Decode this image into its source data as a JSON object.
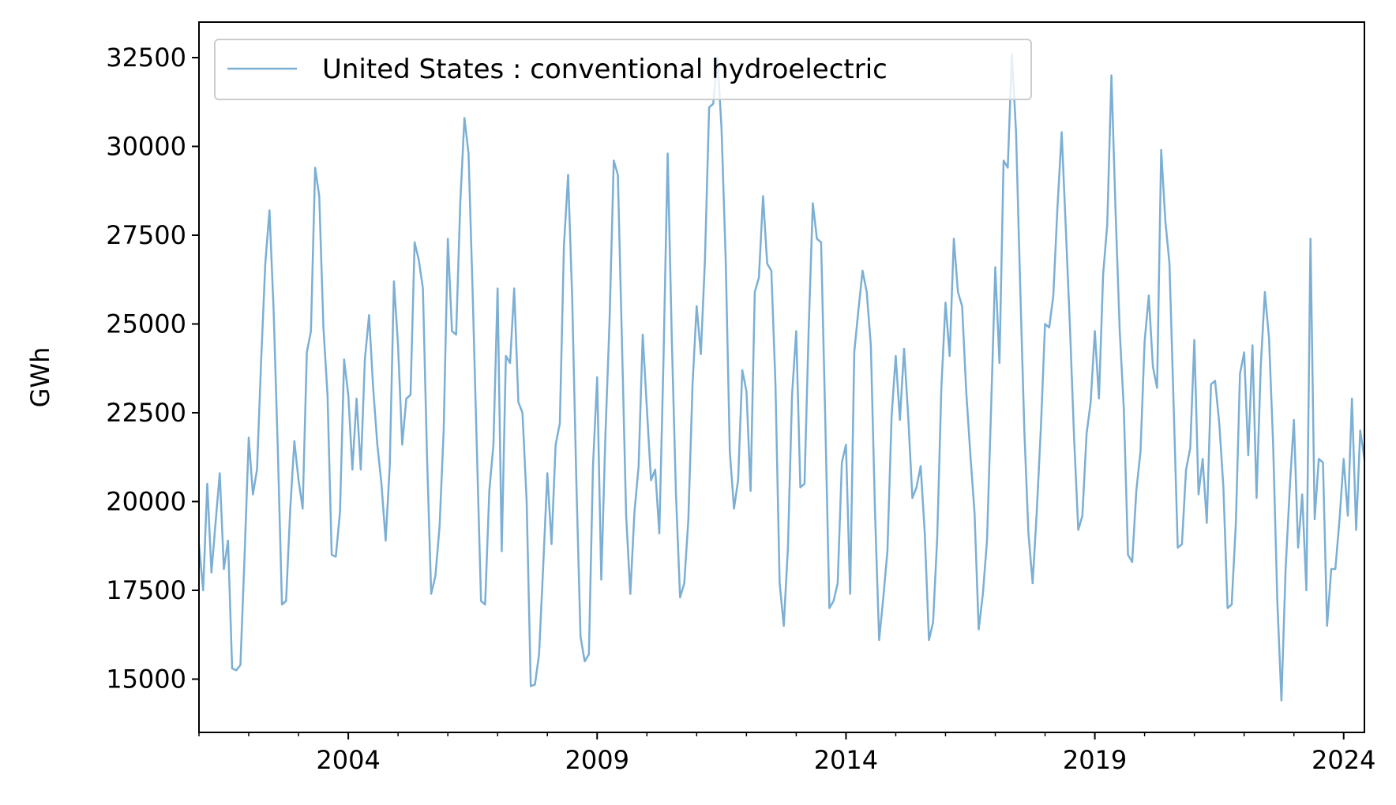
{
  "chart_data": {
    "type": "line",
    "title": "",
    "xlabel": "",
    "ylabel": "GWh",
    "xlim": [
      "2001-01",
      "2024-06"
    ],
    "ylim": [
      13500,
      33500
    ],
    "yticks": [
      15000,
      17500,
      20000,
      22500,
      25000,
      27500,
      30000,
      32500
    ],
    "xticks": [
      {
        "label": "2004",
        "date": "2004-01"
      },
      {
        "label": "2009",
        "date": "2009-01"
      },
      {
        "label": "2014",
        "date": "2014-01"
      },
      {
        "label": "2019",
        "date": "2019-01"
      },
      {
        "label": "2024",
        "date": "2024-01"
      }
    ],
    "grid": false,
    "legend": {
      "placement": "top-left"
    },
    "series": [
      {
        "name": "United States : conventional hydroelectric",
        "color": "#7bafd4",
        "start": "2001-01",
        "frequency": "monthly",
        "values": [
          18800,
          17500,
          20500,
          18000,
          19400,
          20800,
          18100,
          18900,
          15300,
          15250,
          15400,
          18500,
          21800,
          20200,
          20900,
          24000,
          26700,
          28200,
          25400,
          21500,
          17100,
          17200,
          19800,
          21700,
          20600,
          19800,
          24200,
          24800,
          29400,
          28600,
          24900,
          23000,
          18500,
          18450,
          19700,
          24000,
          23000,
          20900,
          22900,
          20900,
          24000,
          25250,
          23200,
          21600,
          20500,
          18900,
          21000,
          26200,
          24400,
          21600,
          22900,
          23000,
          27300,
          26800,
          26000,
          21200,
          17400,
          17900,
          19300,
          22000,
          27400,
          24800,
          24700,
          28400,
          30800,
          29800,
          25800,
          21500,
          17200,
          17100,
          20300,
          21600,
          26000,
          18600,
          24100,
          23900,
          26000,
          22800,
          22500,
          20000,
          14800,
          14850,
          15700,
          18200,
          20800,
          18800,
          21600,
          22200,
          27200,
          29200,
          25700,
          20500,
          16200,
          15500,
          15700,
          21000,
          23500,
          17800,
          21900,
          25100,
          29600,
          29200,
          24400,
          19600,
          17400,
          19700,
          21000,
          24700,
          22600,
          20600,
          20900,
          19100,
          24000,
          29800,
          24600,
          20200,
          17300,
          17700,
          19500,
          23300,
          25500,
          24150,
          26800,
          31100,
          31200,
          32500,
          30500,
          26800,
          21400,
          19800,
          20600,
          23700,
          23100,
          20300,
          25900,
          26300,
          28600,
          26700,
          26500,
          23300,
          17700,
          16500,
          18700,
          23000,
          24800,
          20400,
          20500,
          24800,
          28400,
          27400,
          27300,
          22300,
          17000,
          17200,
          17700,
          21100,
          21600,
          17400,
          24200,
          25400,
          26500,
          25900,
          24400,
          19700,
          16100,
          17300,
          18600,
          22400,
          24100,
          22300,
          24300,
          22400,
          20100,
          20400,
          21000,
          19100,
          16100,
          16600,
          19000,
          23200,
          25600,
          24100,
          27400,
          25900,
          25500,
          23100,
          21300,
          19700,
          16400,
          17400,
          18900,
          22700,
          26600,
          23900,
          29600,
          29400,
          32600,
          30400,
          26100,
          22000,
          19100,
          17700,
          19700,
          22100,
          25000,
          24900,
          25800,
          28300,
          30400,
          27700,
          24900,
          21800,
          19200,
          19600,
          21900,
          22800,
          24800,
          22900,
          26400,
          27800,
          32000,
          28200,
          24800,
          22600,
          18500,
          18300,
          20300,
          21400,
          24500,
          25800,
          23800,
          23200,
          29900,
          27900,
          26700,
          22700,
          18700,
          18800,
          20900,
          21500,
          24550,
          20200,
          21200,
          19400,
          23300,
          23400,
          22200,
          20400,
          17000,
          17100,
          19400,
          23600,
          24200,
          21300,
          24400,
          20100,
          23800,
          25900,
          24600,
          21600,
          17200,
          14400,
          18100,
          20400,
          22300,
          18700,
          20200,
          17500,
          27400,
          19500,
          21200,
          21100,
          16500,
          18100,
          18100,
          19500,
          21200,
          19600,
          22900,
          19200,
          22000,
          21200
        ]
      }
    ]
  }
}
